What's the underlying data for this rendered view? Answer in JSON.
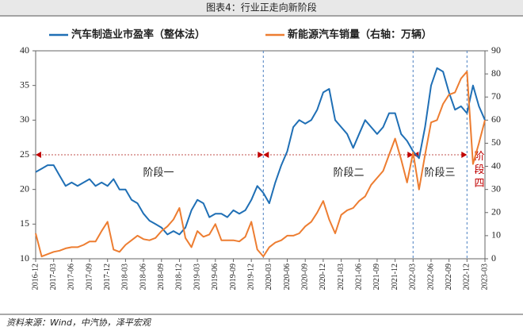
{
  "chart_data": {
    "type": "line",
    "title": "图表4：行业正走向新阶段",
    "source": "资料来源：Wind，中汽协，泽平宏观",
    "annotations": [
      "阶段一",
      "阶段二",
      "阶段三",
      "阶段四"
    ],
    "categories": [
      "2016-12",
      null,
      null,
      "2017-03",
      null,
      null,
      "2017-06",
      null,
      null,
      "2017-09",
      null,
      null,
      "2017-12",
      null,
      null,
      "2018-03",
      null,
      null,
      "2018-06",
      null,
      null,
      "2018-09",
      null,
      null,
      "2018-12",
      null,
      null,
      "2019-03",
      null,
      null,
      "2019-06",
      null,
      null,
      "2019-09",
      null,
      null,
      "2019-12",
      null,
      null,
      "2020-03",
      null,
      null,
      "2020-06",
      null,
      null,
      "2020-09",
      null,
      null,
      "2020-12",
      null,
      null,
      "2021-03",
      null,
      null,
      "2021-06",
      null,
      null,
      "2021-09",
      null,
      null,
      "2021-12",
      null,
      null,
      "2022-03",
      null,
      null,
      "2022-06",
      null,
      null,
      "2022-09",
      null,
      null,
      "2022-12",
      null,
      null,
      "2023-03"
    ],
    "series": [
      {
        "name": "汽车制造业市盈率（整体法）",
        "color": "#1f6fb5",
        "values": [
          22.5,
          23,
          23.5,
          23.5,
          22,
          20.5,
          21,
          20.5,
          21,
          21.5,
          20.5,
          21,
          20.5,
          21.5,
          20,
          20,
          18.5,
          18,
          16.5,
          15.5,
          15,
          14.5,
          13.5,
          14,
          13.5,
          14.5,
          17,
          18.5,
          18,
          16,
          16.5,
          16.5,
          16,
          17,
          16.5,
          17,
          18.5,
          20.5,
          19.5,
          18,
          21,
          23.5,
          25.5,
          29,
          30,
          29.5,
          30,
          31.5,
          34,
          34.5,
          30,
          29,
          28,
          26,
          28,
          30,
          29,
          28,
          29,
          31,
          31,
          28,
          27,
          25.5,
          24.5,
          29,
          35,
          37.5,
          37,
          34,
          31.5,
          32,
          31,
          35,
          32,
          30
        ]
      },
      {
        "name": "新能源汽车销量（右轴：万辆）",
        "color": "#ed7d31",
        "axis": "y2",
        "values": [
          11,
          1,
          2,
          3,
          3.5,
          4.5,
          5,
          5,
          6,
          7.5,
          7.5,
          12,
          16,
          4,
          3,
          6,
          8,
          10,
          8.5,
          8,
          9,
          12,
          14,
          17,
          22,
          9,
          5,
          12,
          9.5,
          10.5,
          15,
          8,
          8,
          8,
          7.5,
          9.5,
          16,
          4,
          1,
          5,
          7,
          8,
          10,
          10,
          11,
          14,
          16,
          20,
          25,
          17,
          11,
          19,
          21,
          22,
          25,
          27,
          32,
          35,
          38,
          45,
          52,
          43,
          33,
          46,
          30,
          45,
          59,
          60,
          67,
          71,
          72,
          78,
          81,
          41,
          50,
          60
        ]
      }
    ],
    "ylim": [
      10,
      40
    ],
    "yticks": [
      10,
      15,
      20,
      25,
      30,
      35,
      40
    ],
    "y2lim": [
      0,
      90
    ],
    "y2ticks": [
      0,
      10,
      20,
      30,
      40,
      50,
      60,
      70,
      80,
      90
    ]
  }
}
